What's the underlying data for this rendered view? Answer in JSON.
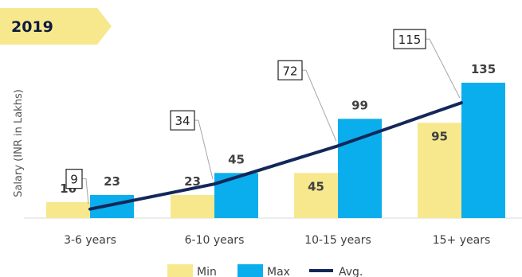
{
  "banner": {
    "text": "2019",
    "color": "#f7e88e"
  },
  "chart_data": {
    "type": "bar",
    "ylabel": "Salary (INR in Lakhs)",
    "categories": [
      "3-6 years",
      "6-10 years",
      "10-15 years",
      "15+ years"
    ],
    "ylim": [
      0,
      140
    ],
    "series": [
      {
        "name": "Min",
        "type": "bar",
        "color": "#f7e88e",
        "values": [
          16,
          23,
          45,
          95
        ]
      },
      {
        "name": "Max",
        "type": "bar",
        "color": "#0aaeec",
        "values": [
          23,
          45,
          99,
          135
        ]
      },
      {
        "name": "Avg.",
        "type": "line",
        "color": "#14275a",
        "values": [
          9,
          34,
          72,
          115
        ]
      }
    ],
    "legend_position": "bottom"
  }
}
